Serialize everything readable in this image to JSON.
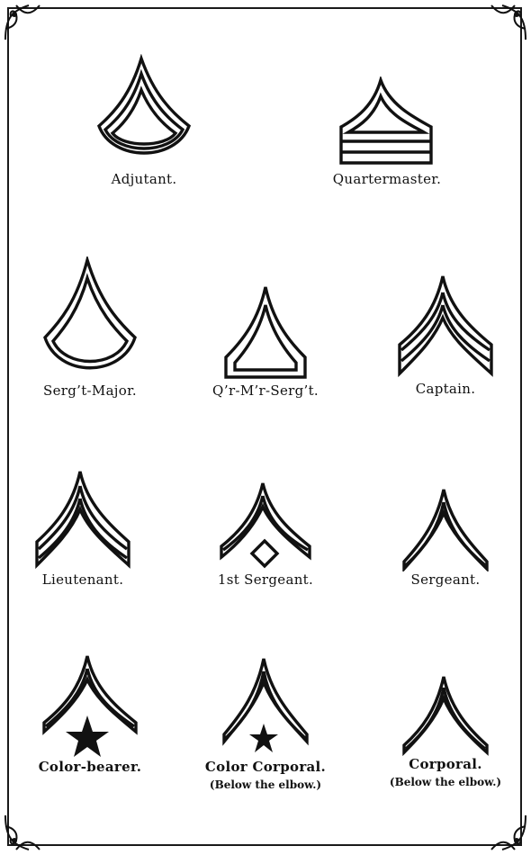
{
  "insignia": {
    "adjutant": {
      "label": "Adjutant."
    },
    "quartermaster": {
      "label": "Quartermaster."
    },
    "serg_major": {
      "label": "Serg’t-Major."
    },
    "qr_mr_sergt": {
      "label": "Q’r-M’r-Serg’t."
    },
    "captain": {
      "label": "Captain."
    },
    "lieutenant": {
      "label": "Lieutenant."
    },
    "first_sergeant": {
      "label": "1st Sergeant."
    },
    "sergeant": {
      "label": "Sergeant."
    },
    "color_bearer": {
      "label": "Color-bearer."
    },
    "color_corporal": {
      "label": "Color Corporal.",
      "note": "(Below the elbow.)"
    },
    "corporal": {
      "label": "Corporal.",
      "note": "(Below the elbow.)"
    }
  }
}
